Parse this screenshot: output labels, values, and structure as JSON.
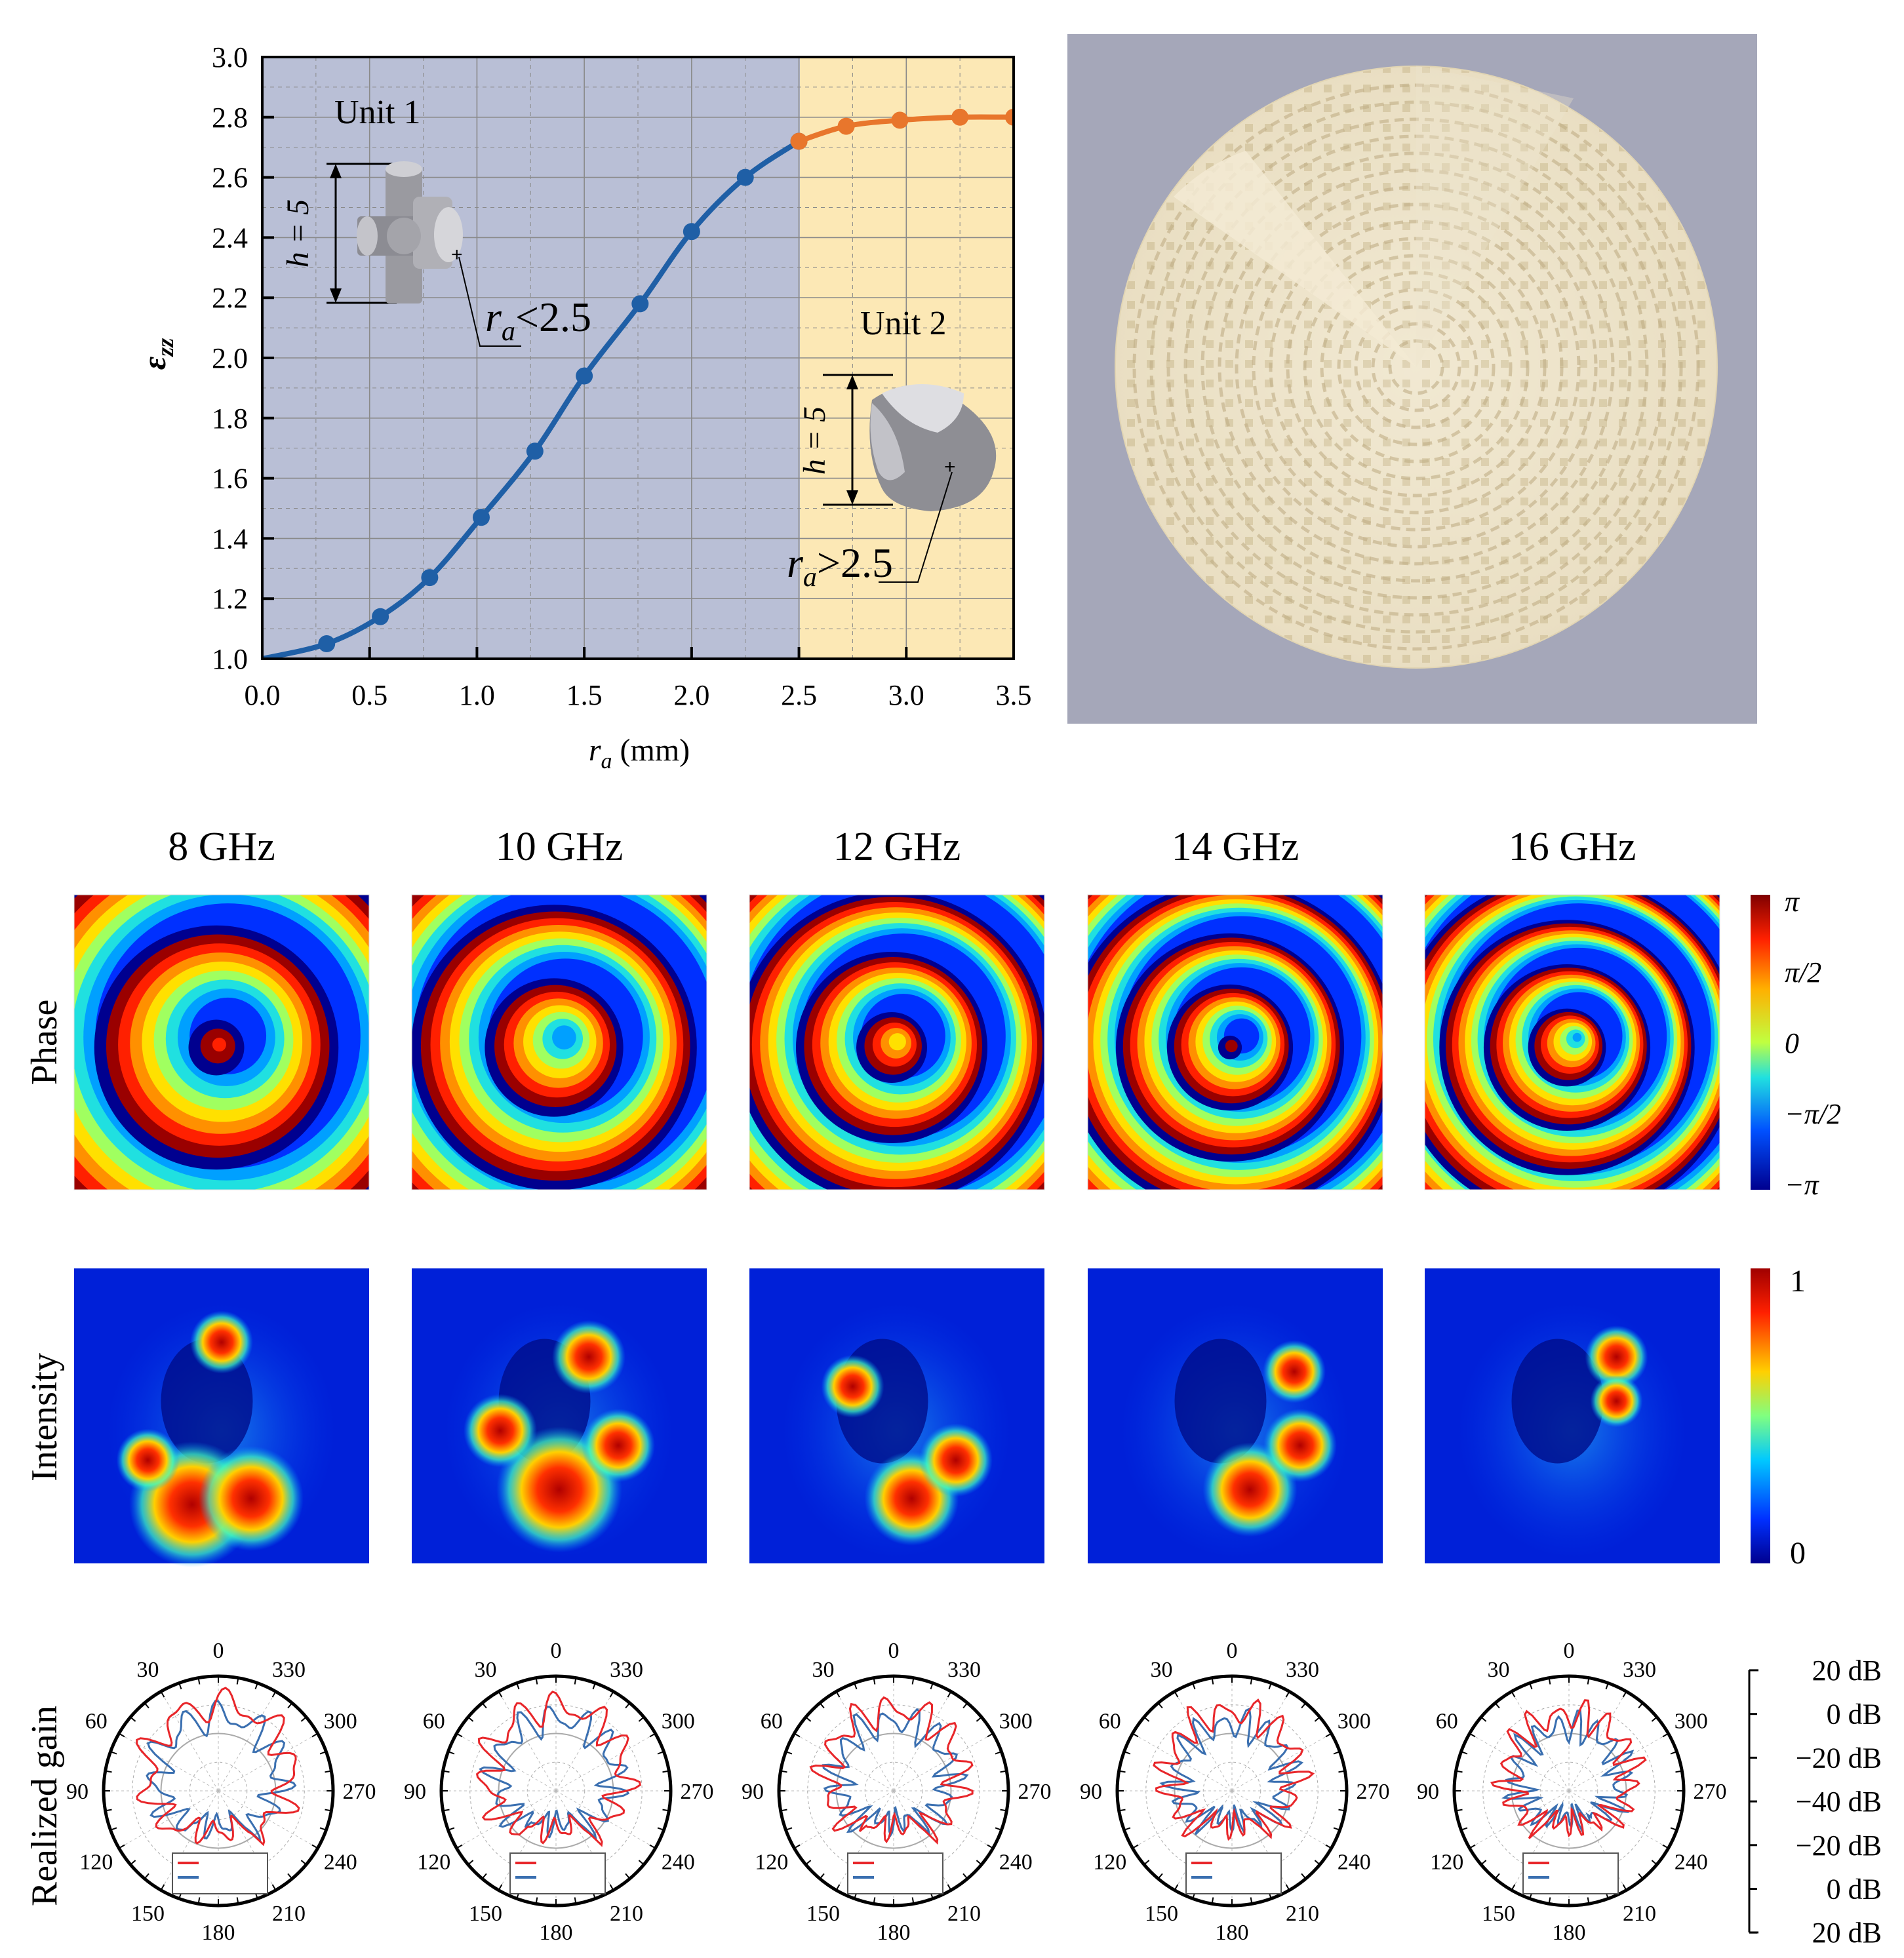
{
  "chart_data": [
    {
      "type": "line",
      "title": "",
      "xlabel": "r",
      "xlabel_sub": "a",
      "xlabel_unit": "(mm)",
      "ylabel": "ε",
      "ylabel_sub": "zz",
      "xlim": [
        0.0,
        3.5
      ],
      "ylim": [
        1.0,
        3.0
      ],
      "xticks": [
        "0.0",
        "0.5",
        "1.0",
        "1.5",
        "2.0",
        "2.5",
        "3.0",
        "3.5"
      ],
      "yticks": [
        "1.0",
        "1.2",
        "1.4",
        "1.6",
        "1.8",
        "2.0",
        "2.2",
        "2.4",
        "2.6",
        "2.8",
        "3.0"
      ],
      "grid": true,
      "regions": [
        {
          "name": "Unit 1",
          "x_range": [
            0.0,
            2.5
          ],
          "color": "#b9bfd6"
        },
        {
          "name": "Unit 2",
          "x_range": [
            2.5,
            3.5
          ],
          "color": "#fce8b5"
        }
      ],
      "series": [
        {
          "name": "Unit 1",
          "color": "#1f5fa6",
          "x": [
            0.0,
            0.3,
            0.55,
            0.78,
            1.02,
            1.27,
            1.5,
            1.76,
            2.0,
            2.25,
            2.5
          ],
          "y": [
            1.0,
            1.05,
            1.14,
            1.27,
            1.47,
            1.69,
            1.94,
            2.18,
            2.42,
            2.6,
            2.72
          ]
        },
        {
          "name": "Unit 2",
          "color": "#e8762c",
          "x": [
            2.5,
            2.72,
            2.97,
            3.25,
            3.5
          ],
          "y": [
            2.72,
            2.77,
            2.79,
            2.8,
            2.8
          ]
        }
      ],
      "annotations": {
        "unit1_label": "Unit 1",
        "unit2_label": "Unit 2",
        "height_label": "h = 5",
        "unit1_radius_var": "r",
        "unit1_radius_sub": "a",
        "unit1_radius_cond": "<2.5",
        "unit2_radius_var": "r",
        "unit2_radius_sub": "a",
        "unit2_radius_cond": ">2.5"
      }
    },
    {
      "type": "heatmap",
      "name": "Phase",
      "row_label": "Phase",
      "columns": [
        "8 GHz",
        "10 GHz",
        "12 GHz",
        "14 GHz",
        "16 GHz"
      ],
      "colorbar": [
        "π",
        "π/2",
        "0",
        "−π/2",
        "−π"
      ]
    },
    {
      "type": "heatmap",
      "name": "Intensity",
      "row_label": "Intensity",
      "columns": [
        "8 GHz",
        "10 GHz",
        "12 GHz",
        "14 GHz",
        "16 GHz"
      ],
      "colorbar": [
        "1",
        "0"
      ]
    },
    {
      "type": "polar",
      "name": "Realized gain",
      "row_label": "Realized gain",
      "columns": [
        "8 GHz",
        "10 GHz",
        "12 GHz",
        "14 GHz",
        "16 GHz"
      ],
      "angle_labels": [
        "0",
        "30",
        "60",
        "90",
        "120",
        "150",
        "180",
        "210",
        "240",
        "270",
        "300",
        "330"
      ],
      "radial_scale": [
        "20 dB",
        "0 dB",
        "−20 dB",
        "−40 dB",
        "−20 dB",
        "0 dB",
        "20 dB"
      ],
      "series_colors": [
        "#e8262a",
        "#3a6fb0"
      ]
    }
  ],
  "colors": {
    "unit1_bg": "#b9bfd6",
    "unit2_bg": "#fce8b5",
    "blue_line": "#1f5fa6",
    "orange_line": "#e8762c",
    "photo_bg": "#a5a7b9",
    "lattice": "#ece3cc",
    "polar_red": "#e8262a",
    "polar_blue": "#3a6fb0"
  }
}
